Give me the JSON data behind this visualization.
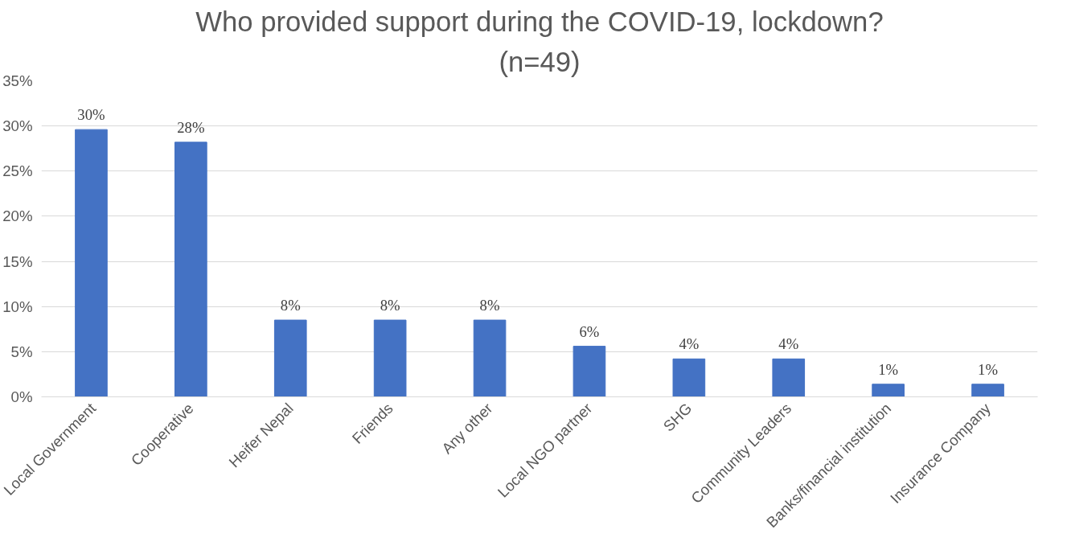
{
  "chart_data": {
    "type": "bar",
    "title": "Who provided support during the COVID-19, lockdown?",
    "subtitle": "(n=49)",
    "categories": [
      "Local Government",
      "Cooperative",
      "Heifer Nepal",
      "Friends",
      "Any other",
      "Local NGO partner",
      "SHG",
      "Community Leaders",
      "Banks/financial institution",
      "Insurance Company"
    ],
    "values": [
      29.6,
      28.2,
      8.5,
      8.5,
      8.5,
      5.6,
      4.2,
      4.2,
      1.4,
      1.4
    ],
    "value_labels": [
      "30%",
      "28%",
      "8%",
      "8%",
      "8%",
      "6%",
      "4%",
      "4%",
      "1%",
      "1%"
    ],
    "color": "#4472c4",
    "ylim": [
      0,
      35
    ],
    "yticks": [
      {
        "value": 0,
        "label": "0%"
      },
      {
        "value": 5,
        "label": "5%"
      },
      {
        "value": 10,
        "label": "10%"
      },
      {
        "value": 15,
        "label": "15%"
      },
      {
        "value": 20,
        "label": "20%"
      },
      {
        "value": 25,
        "label": "25%"
      },
      {
        "value": 30,
        "label": "30%"
      },
      {
        "value": 35,
        "label": "35%"
      }
    ],
    "grid": "y"
  }
}
